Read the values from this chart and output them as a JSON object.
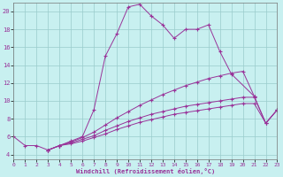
{
  "xlabel": "Windchill (Refroidissement éolien,°C)",
  "bg_color": "#c8f0f0",
  "grid_color": "#99cccc",
  "line_color": "#993399",
  "xlim": [
    0,
    23
  ],
  "ylim": [
    3.5,
    21.0
  ],
  "xticks": [
    0,
    1,
    2,
    3,
    4,
    5,
    6,
    7,
    8,
    9,
    10,
    11,
    12,
    13,
    14,
    15,
    16,
    17,
    18,
    19,
    20,
    21,
    22,
    23
  ],
  "yticks": [
    4,
    6,
    8,
    10,
    12,
    14,
    16,
    18,
    20
  ],
  "curves": [
    {
      "x": [
        0,
        1,
        2,
        3,
        4,
        5,
        6,
        7,
        8,
        9,
        10,
        11,
        12,
        13,
        14,
        15,
        16,
        17,
        18,
        19,
        21
      ],
      "y": [
        6.0,
        5.0,
        5.0,
        4.5,
        5.0,
        5.5,
        6.0,
        9.0,
        15.0,
        17.5,
        20.5,
        20.8,
        19.5,
        18.5,
        17.0,
        18.0,
        18.0,
        18.5,
        15.5,
        13.0,
        10.5
      ]
    },
    {
      "x": [
        3,
        4,
        5,
        6,
        7,
        8,
        9,
        10,
        11,
        12,
        13,
        14,
        15,
        16,
        17,
        18,
        19,
        20,
        21,
        22,
        23
      ],
      "y": [
        4.5,
        5.0,
        5.4,
        5.9,
        6.5,
        7.3,
        8.1,
        8.8,
        9.5,
        10.1,
        10.7,
        11.2,
        11.7,
        12.1,
        12.5,
        12.8,
        13.1,
        13.3,
        10.5,
        7.5,
        9.0
      ]
    },
    {
      "x": [
        3,
        4,
        5,
        6,
        7,
        8,
        9,
        10,
        11,
        12,
        13,
        14,
        15,
        16,
        17,
        18,
        19,
        20,
        21,
        22,
        23
      ],
      "y": [
        4.5,
        5.0,
        5.3,
        5.7,
        6.1,
        6.7,
        7.2,
        7.7,
        8.1,
        8.5,
        8.8,
        9.1,
        9.4,
        9.6,
        9.8,
        10.0,
        10.2,
        10.4,
        10.4,
        7.5,
        9.0
      ]
    },
    {
      "x": [
        3,
        4,
        5,
        6,
        7,
        8,
        9,
        10,
        11,
        12,
        13,
        14,
        15,
        16,
        17,
        18,
        19,
        20,
        21,
        22,
        23
      ],
      "y": [
        4.5,
        5.0,
        5.2,
        5.5,
        5.9,
        6.3,
        6.8,
        7.2,
        7.6,
        7.9,
        8.2,
        8.5,
        8.7,
        8.9,
        9.1,
        9.3,
        9.5,
        9.7,
        9.7,
        7.5,
        9.0
      ]
    }
  ]
}
